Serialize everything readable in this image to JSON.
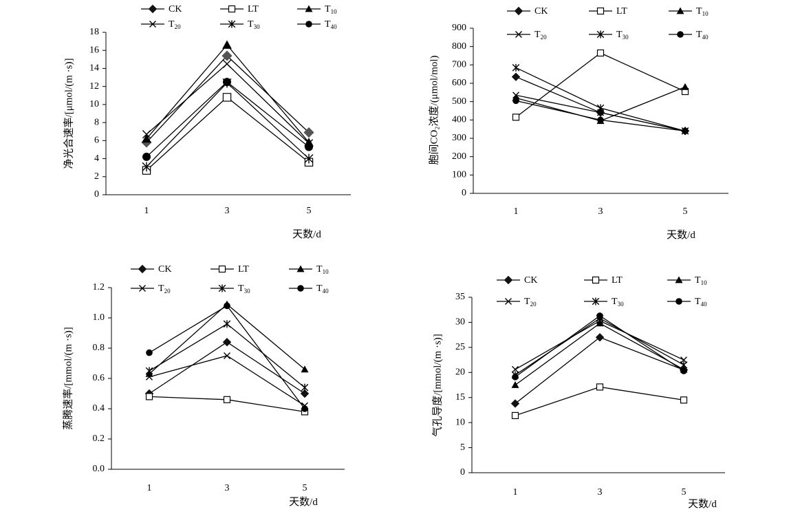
{
  "legend_entries": [
    "CK",
    "LT",
    "T10",
    "T20",
    "T30",
    "T40"
  ],
  "chart_data": [
    {
      "type": "line",
      "x": [
        1,
        3,
        5
      ],
      "xlabel": "天数/d",
      "ylabel": "净光合速率/[μmol/(m ·s)]",
      "ylim": [
        0,
        18
      ],
      "yticks": [
        0,
        2,
        4,
        6,
        8,
        10,
        12,
        14,
        16,
        18
      ],
      "series": [
        {
          "name": "CK",
          "values": [
            5.8,
            15.4,
            6.9
          ]
        },
        {
          "name": "LT",
          "values": [
            2.7,
            10.8,
            3.6
          ]
        },
        {
          "name": "T10",
          "values": [
            6.2,
            16.6,
            5.8
          ]
        },
        {
          "name": "T20",
          "values": [
            6.7,
            14.5,
            5.7
          ]
        },
        {
          "name": "T30",
          "values": [
            3.1,
            12.4,
            4.0
          ]
        },
        {
          "name": "T40",
          "values": [
            4.2,
            12.5,
            5.3
          ]
        }
      ]
    },
    {
      "type": "line",
      "x": [
        1,
        3,
        5
      ],
      "xlabel": "天数/d",
      "ylabel": "胞间CO₂浓度/(μmol/mol)",
      "ylim": [
        0,
        900
      ],
      "yticks": [
        0,
        100,
        200,
        300,
        400,
        500,
        600,
        700,
        800,
        900
      ],
      "series": [
        {
          "name": "CK",
          "values": [
            635,
            440,
            340
          ]
        },
        {
          "name": "LT",
          "values": [
            415,
            765,
            555
          ]
        },
        {
          "name": "T10",
          "values": [
            520,
            395,
            580
          ]
        },
        {
          "name": "T20",
          "values": [
            535,
            440,
            340
          ]
        },
        {
          "name": "T30",
          "values": [
            685,
            465,
            340
          ]
        },
        {
          "name": "T40",
          "values": [
            505,
            400,
            340
          ]
        }
      ]
    },
    {
      "type": "line",
      "x": [
        1,
        3,
        5
      ],
      "xlabel": "天数/d",
      "ylabel": "蒸腾速率/[mmol/(m ·s)]",
      "ylim": [
        0,
        1.2
      ],
      "yticks": [
        "0.0",
        "0.2",
        "0.4",
        "0.6",
        "0.8",
        "1.0",
        "1.2"
      ],
      "series": [
        {
          "name": "CK",
          "values": [
            0.5,
            0.84,
            0.5
          ]
        },
        {
          "name": "LT",
          "values": [
            0.48,
            0.46,
            0.38
          ]
        },
        {
          "name": "T10",
          "values": [
            0.63,
            1.09,
            0.66
          ]
        },
        {
          "name": "T20",
          "values": [
            0.61,
            0.75,
            0.42
          ]
        },
        {
          "name": "T30",
          "values": [
            0.65,
            0.96,
            0.54
          ]
        },
        {
          "name": "T40",
          "values": [
            0.77,
            1.08,
            0.4
          ]
        }
      ]
    },
    {
      "type": "line",
      "x": [
        1,
        3,
        5
      ],
      "xlabel": "天数/d",
      "ylabel": "气孔导度/[mmol/(m ·s)]",
      "ylim": [
        0,
        35
      ],
      "yticks": [
        0,
        5,
        10,
        15,
        20,
        25,
        30,
        35
      ],
      "series": [
        {
          "name": "CK",
          "values": [
            13.8,
            27.0,
            20.5
          ]
        },
        {
          "name": "LT",
          "values": [
            11.4,
            17.1,
            14.5
          ]
        },
        {
          "name": "T10",
          "values": [
            17.5,
            29.8,
            20.6
          ]
        },
        {
          "name": "T20",
          "values": [
            20.6,
            30.3,
            22.5
          ]
        },
        {
          "name": "T30",
          "values": [
            19.5,
            30.8,
            21.5
          ]
        },
        {
          "name": "T40",
          "values": [
            19.1,
            31.3,
            20.3
          ]
        }
      ]
    }
  ]
}
